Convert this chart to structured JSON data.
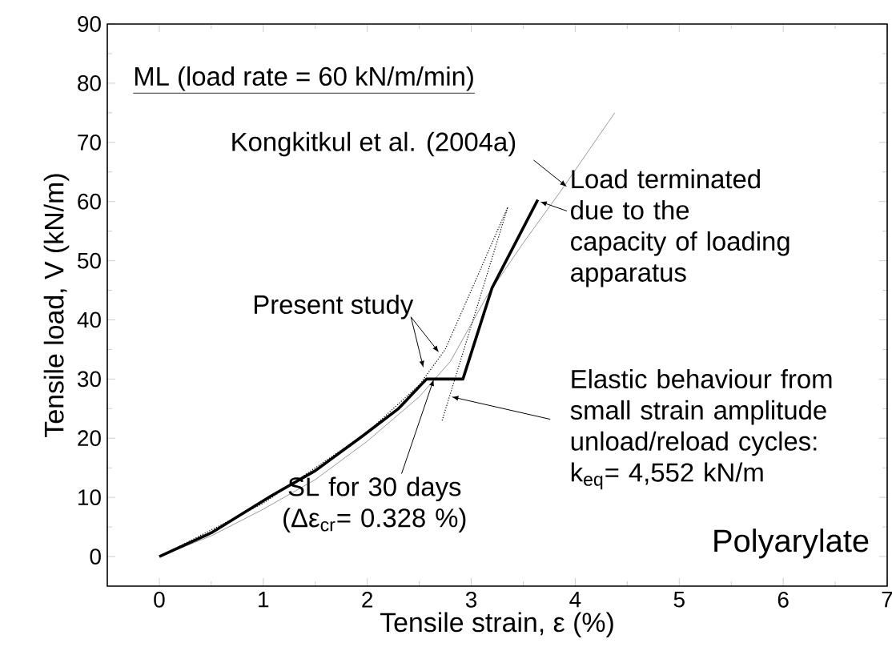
{
  "chart_data": {
    "type": "line",
    "xlabel": "Tensile strain, ε (%)",
    "ylabel": "Tensile load, V (kN/m)",
    "xlim": [
      -0.5,
      7
    ],
    "ylim": [
      -5,
      90
    ],
    "xticks": [
      0,
      1,
      2,
      3,
      4,
      5,
      6,
      7
    ],
    "yticks": [
      0,
      10,
      20,
      30,
      40,
      50,
      60,
      70,
      80,
      90
    ],
    "grid": false,
    "series": [
      {
        "color": "#999999",
        "line_style": "solid",
        "x": [
          0,
          0.5,
          1,
          1.5,
          2,
          2.5,
          2.8,
          3.15,
          3.5,
          3.87,
          4.38
        ],
        "values": [
          0,
          3.5,
          8,
          13,
          19.5,
          27,
          33,
          44,
          53,
          62,
          75
        ]
      },
      {
        "color": "#000000",
        "line_style": "dotted",
        "x": [
          0,
          1,
          2,
          2.5,
          2.75,
          3.0,
          3.35
        ],
        "values": [
          0,
          9,
          21,
          29,
          35,
          45,
          59
        ]
      },
      {
        "color": "#000000",
        "line_style": "dotted",
        "x": [
          2.72,
          3.35
        ],
        "values": [
          23,
          59
        ]
      },
      {
        "color": "#000000",
        "line_style": "solid",
        "x": [
          0,
          0.5,
          1.08,
          1.5,
          1.95,
          2.3,
          2.57,
          2.92,
          3.2,
          3.64
        ],
        "values": [
          0,
          4,
          10.3,
          14.5,
          20.3,
          25,
          30,
          30,
          45.4,
          60.3
        ]
      }
    ],
    "annotations": [
      "ML (load rate = 60 kN/m/min)",
      {
        "text": "Kongkitkul et al. (2004a)",
        "x": 3.92,
        "y": 62.5
      },
      {
        "text": "Load terminated due to the capacity of loading apparatus",
        "x": 3.66,
        "y": 60
      },
      {
        "text": "Present study",
        "x": 2.69,
        "y": 34.5
      },
      {
        "text": "Elastic behaviour from small strain amplitude unload/reload cycles: k$_{eq}$= 4,552 kN/m",
        "x": 2.81,
        "y": 27
      },
      {
        "text": "SL for 30 days (Δε$_{cr}$= 0.328 %)",
        "x": 2.64,
        "y": 30
      },
      "Polyarylate"
    ]
  }
}
